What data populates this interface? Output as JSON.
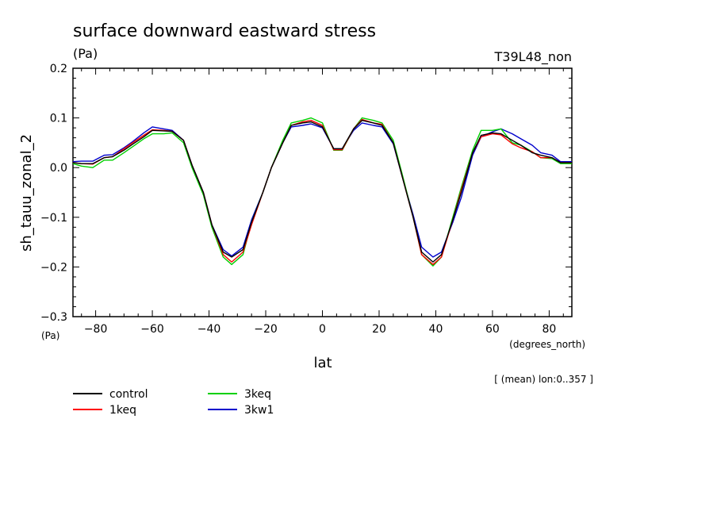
{
  "chart_data": {
    "type": "line",
    "title": "surface downward eastward stress",
    "title_unit": "(Pa)",
    "run_label": "T39L48_non",
    "ylabel": "sh_tauu_zonal_2",
    "y_unit": "(Pa)",
    "xlabel": "lat",
    "x_unit": "(degrees_north)",
    "annotation": "[ (mean) lon:0..357 ]",
    "xlim": [
      -88,
      88
    ],
    "ylim": [
      -0.3,
      0.2
    ],
    "x_ticks": [
      -80,
      -60,
      -40,
      -20,
      0,
      20,
      40,
      60,
      80
    ],
    "x_tick_labels": [
      "−80",
      "−60",
      "−40",
      "−20",
      "0",
      "20",
      "40",
      "60",
      "80"
    ],
    "y_ticks": [
      -0.3,
      -0.2,
      -0.1,
      0.0,
      0.1,
      0.2
    ],
    "y_tick_labels": [
      "−0.3",
      "−0.2",
      "−0.1",
      "0.0",
      "0.1",
      "0.2"
    ],
    "grid": false,
    "legend_position": "bottom-left",
    "x": [
      -88,
      -85,
      -81,
      -77,
      -74,
      -70,
      -67,
      -63,
      -60,
      -56,
      -53,
      -49,
      -46,
      -42,
      -39,
      -35,
      -32,
      -28,
      -25,
      -21,
      -18,
      -14,
      -11,
      -7,
      -4,
      0,
      4,
      7,
      11,
      14,
      18,
      21,
      25,
      28,
      32,
      35,
      39,
      42,
      46,
      49,
      53,
      56,
      60,
      63,
      67,
      70,
      74,
      77,
      81,
      84,
      88
    ],
    "series": [
      {
        "name": "control",
        "color": "#000000",
        "values": [
          0.01,
          0.008,
          0.008,
          0.02,
          0.022,
          0.035,
          0.047,
          0.062,
          0.075,
          0.074,
          0.073,
          0.055,
          0.005,
          -0.05,
          -0.115,
          -0.17,
          -0.18,
          -0.165,
          -0.11,
          -0.05,
          0.0,
          0.05,
          0.085,
          0.09,
          0.092,
          0.082,
          0.038,
          0.038,
          0.078,
          0.095,
          0.09,
          0.085,
          0.05,
          -0.015,
          -0.1,
          -0.17,
          -0.19,
          -0.175,
          -0.105,
          -0.05,
          0.03,
          0.065,
          0.07,
          0.068,
          0.055,
          0.045,
          0.03,
          0.025,
          0.02,
          0.01,
          0.01
        ]
      },
      {
        "name": "1keq",
        "color": "#ff0000",
        "values": [
          0.01,
          0.008,
          0.007,
          0.02,
          0.022,
          0.038,
          0.05,
          0.065,
          0.076,
          0.075,
          0.073,
          0.055,
          0.005,
          -0.05,
          -0.115,
          -0.175,
          -0.19,
          -0.17,
          -0.115,
          -0.05,
          0.0,
          0.05,
          0.085,
          0.092,
          0.095,
          0.085,
          0.036,
          0.036,
          0.078,
          0.097,
          0.09,
          0.087,
          0.05,
          -0.015,
          -0.1,
          -0.175,
          -0.195,
          -0.18,
          -0.105,
          -0.045,
          0.03,
          0.062,
          0.068,
          0.066,
          0.048,
          0.04,
          0.032,
          0.02,
          0.02,
          0.01,
          0.01
        ]
      },
      {
        "name": "3keq",
        "color": "#00d000",
        "values": [
          0.008,
          0.003,
          0.0,
          0.015,
          0.015,
          0.03,
          0.042,
          0.058,
          0.068,
          0.068,
          0.07,
          0.05,
          0.0,
          -0.055,
          -0.12,
          -0.18,
          -0.195,
          -0.175,
          -0.11,
          -0.05,
          0.0,
          0.055,
          0.09,
          0.095,
          0.1,
          0.09,
          0.035,
          0.035,
          0.078,
          0.1,
          0.095,
          0.09,
          0.055,
          -0.01,
          -0.1,
          -0.175,
          -0.198,
          -0.18,
          -0.1,
          -0.04,
          0.035,
          0.075,
          0.075,
          0.078,
          0.05,
          0.045,
          0.032,
          0.02,
          0.018,
          0.008,
          0.008
        ]
      },
      {
        "name": "3kw1",
        "color": "#0000cc",
        "values": [
          0.012,
          0.013,
          0.013,
          0.025,
          0.026,
          0.04,
          0.052,
          0.07,
          0.082,
          0.078,
          0.075,
          0.055,
          0.005,
          -0.05,
          -0.115,
          -0.165,
          -0.178,
          -0.16,
          -0.105,
          -0.05,
          0.0,
          0.05,
          0.082,
          0.085,
          0.088,
          0.08,
          0.038,
          0.038,
          0.075,
          0.09,
          0.085,
          0.082,
          0.048,
          -0.015,
          -0.095,
          -0.16,
          -0.18,
          -0.17,
          -0.11,
          -0.06,
          0.025,
          0.062,
          0.072,
          0.078,
          0.068,
          0.058,
          0.045,
          0.03,
          0.025,
          0.012,
          0.012
        ]
      }
    ]
  }
}
